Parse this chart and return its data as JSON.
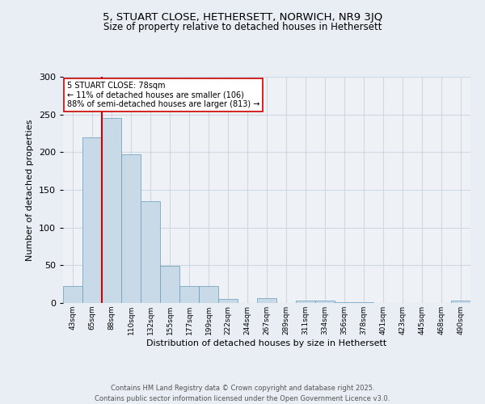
{
  "title1": "5, STUART CLOSE, HETHERSETT, NORWICH, NR9 3JQ",
  "title2": "Size of property relative to detached houses in Hethersett",
  "xlabel": "Distribution of detached houses by size in Hethersett",
  "ylabel": "Number of detached properties",
  "categories": [
    "43sqm",
    "65sqm",
    "88sqm",
    "110sqm",
    "132sqm",
    "155sqm",
    "177sqm",
    "199sqm",
    "222sqm",
    "244sqm",
    "267sqm",
    "289sqm",
    "311sqm",
    "334sqm",
    "356sqm",
    "378sqm",
    "401sqm",
    "423sqm",
    "445sqm",
    "468sqm",
    "490sqm"
  ],
  "values": [
    22,
    220,
    245,
    197,
    135,
    49,
    22,
    22,
    5,
    0,
    6,
    0,
    3,
    3,
    1,
    1,
    0,
    0,
    0,
    0,
    3
  ],
  "bar_color": "#c8d9e8",
  "bar_edge_color": "#6699bb",
  "annotation_line1": "5 STUART CLOSE: 78sqm",
  "annotation_line2": "← 11% of detached houses are smaller (106)",
  "annotation_line3": "88% of semi-detached houses are larger (813) →",
  "vline_color": "#cc0000",
  "annotation_box_color": "#ffffff",
  "annotation_box_edge": "#cc0000",
  "grid_color": "#d0d8e4",
  "bg_color": "#e8eef4",
  "plot_bg_color": "#eef2f7",
  "footer": "Contains HM Land Registry data © Crown copyright and database right 2025.\nContains public sector information licensed under the Open Government Licence v3.0.",
  "ylim": [
    0,
    300
  ],
  "yticks": [
    0,
    50,
    100,
    150,
    200,
    250,
    300
  ],
  "vline_x": 1.5
}
